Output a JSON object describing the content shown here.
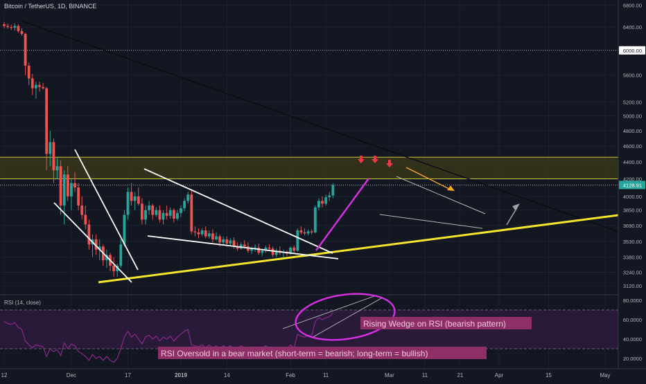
{
  "header": {
    "symbol_label": "Bitcoin / TetherUS, 1D, BINANCE"
  },
  "rsi_panel": {
    "label": "RSI (14, close)"
  },
  "annotations": {
    "rsi_wedge": "Rising Wedge on RSI (bearish pattern)",
    "rsi_oversold": "RSI Oversold in a bear market (short-term = bearish; long-term = bullish)"
  },
  "colors": {
    "background": "#131722",
    "up_candle": "#26a69a",
    "down_candle": "#ef5350",
    "trendline_yellow": "#f5e62c",
    "trendline_white": "#ffffff",
    "wedge_magenta": "#d930e6",
    "resistance_zone": "#3c3a1a",
    "rsi_line": "#8b2a8a",
    "rsi_band": "#2a1a3a",
    "annotation_bg": "#8e2f67",
    "annotation_text": "#f2c9dc"
  },
  "chart_data": {
    "type": "candlestick",
    "symbol": "Bitcoin / TetherUS",
    "interval": "1D",
    "exchange": "BINANCE",
    "ylim": [
      3050,
      6900
    ],
    "y_scale": "log",
    "y_ticks": [
      6800,
      6400,
      6000,
      5600,
      5200,
      5000,
      4800,
      4600,
      4400,
      4200,
      4000,
      3850,
      3690,
      3530,
      3380,
      3240,
      3120
    ],
    "y_tick_labels": [
      "6800.00",
      "6400.00",
      "6000.00",
      "5600.00",
      "5200.00",
      "5000.00",
      "4800.00",
      "4600.00",
      "4400.00",
      "4200.00",
      "4000.00",
      "3850.00",
      "3690.00",
      "3530.00",
      "3380.00",
      "3240.00",
      "3120.00"
    ],
    "marked_price_lines": [
      {
        "label": "6000.00",
        "value": 6000
      },
      {
        "label": "4128.91",
        "value": 4128.91
      }
    ],
    "x_tick_labels": [
      "12",
      "Dec",
      "17",
      "2019",
      "14",
      "Feb",
      "11",
      "Mar",
      "11",
      "21",
      "Apr",
      "15",
      "May"
    ],
    "x_tick_days": [
      0,
      19,
      35,
      50,
      63,
      81,
      91,
      109,
      119,
      129,
      140,
      154,
      170
    ],
    "resistance_zone": [
      4200,
      4460
    ],
    "candles": [
      [
        6450,
        6490,
        6380,
        6420
      ],
      [
        6420,
        6460,
        6370,
        6400
      ],
      [
        6400,
        6440,
        6350,
        6390
      ],
      [
        6390,
        6470,
        6340,
        6420
      ],
      [
        6420,
        6450,
        6300,
        6330
      ],
      [
        6330,
        6380,
        6250,
        6280
      ],
      [
        6280,
        6300,
        5600,
        5750
      ],
      [
        5750,
        5800,
        5450,
        5550
      ],
      [
        5550,
        5620,
        5300,
        5400
      ],
      [
        5400,
        5500,
        5250,
        5450
      ],
      [
        5450,
        5500,
        5350,
        5420
      ],
      [
        5420,
        5480,
        5380,
        5400
      ],
      [
        5400,
        5420,
        4300,
        4500
      ],
      [
        4500,
        4800,
        4350,
        4650
      ],
      [
        4650,
        4700,
        4150,
        4300
      ],
      [
        4300,
        4450,
        4200,
        4350
      ],
      [
        4350,
        4420,
        3800,
        3900
      ],
      [
        3900,
        4300,
        3700,
        4250
      ],
      [
        4250,
        4350,
        3950,
        4000
      ],
      [
        4000,
        4200,
        3850,
        4150
      ],
      [
        4150,
        4280,
        4050,
        4100
      ],
      [
        4100,
        4150,
        3850,
        3900
      ],
      [
        3900,
        4000,
        3750,
        3800
      ],
      [
        3800,
        3900,
        3650,
        3700
      ],
      [
        3700,
        3750,
        3450,
        3500
      ],
      [
        3500,
        3600,
        3380,
        3550
      ],
      [
        3550,
        3600,
        3400,
        3450
      ],
      [
        3450,
        3550,
        3350,
        3480
      ],
      [
        3480,
        3500,
        3300,
        3350
      ],
      [
        3350,
        3450,
        3280,
        3400
      ],
      [
        3400,
        3420,
        3250,
        3300
      ],
      [
        3300,
        3380,
        3200,
        3250
      ],
      [
        3250,
        3320,
        3200,
        3300
      ],
      [
        3300,
        3550,
        3280,
        3500
      ],
      [
        3500,
        3850,
        3480,
        3800
      ],
      [
        3800,
        4100,
        3750,
        4050
      ],
      [
        4050,
        4150,
        3900,
        3950
      ],
      [
        3950,
        4050,
        3850,
        4000
      ],
      [
        4000,
        4100,
        3900,
        3920
      ],
      [
        3920,
        3980,
        3700,
        3750
      ],
      [
        3750,
        3900,
        3700,
        3850
      ],
      [
        3850,
        3950,
        3800,
        3900
      ],
      [
        3900,
        3920,
        3750,
        3800
      ],
      [
        3800,
        3880,
        3780,
        3850
      ],
      [
        3850,
        3900,
        3720,
        3750
      ],
      [
        3750,
        3850,
        3700,
        3820
      ],
      [
        3820,
        3900,
        3750,
        3790
      ],
      [
        3790,
        3880,
        3760,
        3850
      ],
      [
        3850,
        3870,
        3720,
        3760
      ],
      [
        3760,
        3850,
        3740,
        3820
      ],
      [
        3820,
        3900,
        3780,
        3870
      ],
      [
        3870,
        3980,
        3840,
        3950
      ],
      [
        3950,
        4050,
        3920,
        4020
      ],
      [
        4020,
        4060,
        3600,
        3630
      ],
      [
        3630,
        3680,
        3580,
        3620
      ],
      [
        3620,
        3660,
        3560,
        3600
      ],
      [
        3600,
        3660,
        3580,
        3640
      ],
      [
        3640,
        3680,
        3560,
        3580
      ],
      [
        3580,
        3640,
        3560,
        3610
      ],
      [
        3610,
        3650,
        3520,
        3550
      ],
      [
        3550,
        3620,
        3540,
        3580
      ],
      [
        3580,
        3600,
        3480,
        3520
      ],
      [
        3520,
        3580,
        3500,
        3550
      ],
      [
        3550,
        3580,
        3480,
        3510
      ],
      [
        3510,
        3560,
        3490,
        3540
      ],
      [
        3540,
        3570,
        3460,
        3480
      ],
      [
        3480,
        3520,
        3440,
        3460
      ],
      [
        3460,
        3520,
        3450,
        3500
      ],
      [
        3500,
        3540,
        3460,
        3480
      ],
      [
        3480,
        3520,
        3420,
        3440
      ],
      [
        3440,
        3480,
        3410,
        3460
      ],
      [
        3460,
        3500,
        3430,
        3470
      ],
      [
        3470,
        3510,
        3400,
        3420
      ],
      [
        3420,
        3460,
        3390,
        3440
      ],
      [
        3440,
        3490,
        3420,
        3470
      ],
      [
        3470,
        3500,
        3440,
        3460
      ],
      [
        3460,
        3480,
        3380,
        3400
      ],
      [
        3400,
        3460,
        3380,
        3440
      ],
      [
        3440,
        3480,
        3400,
        3420
      ],
      [
        3420,
        3450,
        3380,
        3430
      ],
      [
        3430,
        3440,
        3390,
        3410
      ],
      [
        3410,
        3480,
        3400,
        3470
      ],
      [
        3470,
        3490,
        3420,
        3440
      ],
      [
        3440,
        3660,
        3430,
        3640
      ],
      [
        3640,
        3680,
        3600,
        3620
      ],
      [
        3620,
        3660,
        3590,
        3610
      ],
      [
        3610,
        3650,
        3590,
        3630
      ],
      [
        3630,
        3650,
        3600,
        3620
      ],
      [
        3620,
        3900,
        3610,
        3880
      ],
      [
        3880,
        3980,
        3850,
        3950
      ],
      [
        3950,
        4000,
        3880,
        3920
      ],
      [
        3920,
        4020,
        3900,
        3990
      ],
      [
        3990,
        4050,
        3950,
        4010
      ],
      [
        4010,
        4150,
        3980,
        4130
      ]
    ],
    "rsi": {
      "name": "RSI (14, close)",
      "ylim": [
        10,
        85
      ],
      "y_ticks": [
        80,
        60,
        40,
        20
      ],
      "y_tick_labels": [
        "80.0000",
        "60.0000",
        "40.0000",
        "20.0000"
      ],
      "bands": [
        30,
        70
      ],
      "values": [
        58,
        56,
        55,
        57,
        52,
        50,
        38,
        34,
        31,
        34,
        33,
        32,
        22,
        30,
        27,
        29,
        23,
        36,
        30,
        35,
        33,
        27,
        25,
        22,
        18,
        24,
        20,
        22,
        18,
        22,
        18,
        16,
        20,
        30,
        42,
        48,
        42,
        45,
        40,
        35,
        42,
        44,
        40,
        43,
        38,
        42,
        40,
        43,
        38,
        42,
        45,
        48,
        50,
        34,
        33,
        32,
        34,
        31,
        34,
        31,
        33,
        30,
        33,
        31,
        33,
        29,
        30,
        33,
        31,
        28,
        31,
        32,
        29,
        31,
        33,
        31,
        27,
        31,
        29,
        31,
        29,
        34,
        31,
        45,
        43,
        42,
        44,
        43,
        58,
        62,
        60,
        62,
        63,
        67
      ]
    }
  }
}
